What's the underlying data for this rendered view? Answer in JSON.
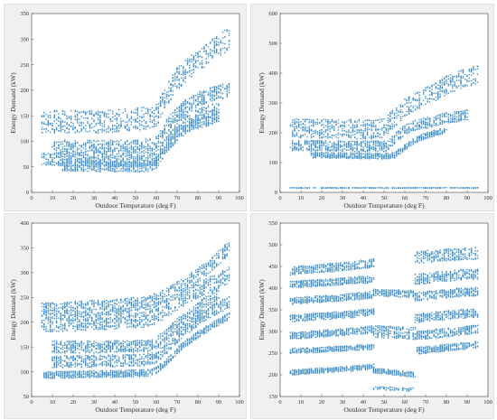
{
  "chart_data": [
    {
      "type": "scatter",
      "xlabel": "Outdoor Temperature (deg F)",
      "ylabel": "Energy Demand (kW)",
      "xlim": [
        0,
        100
      ],
      "ylim": [
        0,
        350
      ],
      "xticks": [
        "0",
        "10",
        "20",
        "30",
        "40",
        "50",
        "60",
        "70",
        "80",
        "90",
        "100"
      ],
      "yticks": [
        "0",
        "50",
        "100",
        "150",
        "200",
        "250",
        "300",
        "350"
      ],
      "grid": false,
      "color": "#3d8fce",
      "series": [
        {
          "bands": [
            {
              "x": [
                5,
                35,
                45,
                55,
                60,
                65,
                70,
                75,
                80,
                85,
                90,
                95
              ],
              "y": [
                138,
                138,
                142,
                145,
                150,
                190,
                222,
                240,
                258,
                272,
                288,
                300
              ],
              "spread": 22
            },
            {
              "x": [
                10,
                40,
                55,
                60,
                65,
                70,
                75,
                80,
                85,
                90,
                95
              ],
              "y": [
                88,
                88,
                90,
                95,
                130,
                155,
                170,
                182,
                190,
                196,
                200
              ],
              "spread": 14
            },
            {
              "x": [
                5,
                40,
                55,
                60,
                65,
                70,
                75,
                80,
                85,
                90
              ],
              "y": [
                65,
                62,
                62,
                68,
                100,
                128,
                145,
                152,
                158,
                165
              ],
              "spread": 12
            },
            {
              "x": [
                15,
                40,
                55,
                60,
                65,
                70,
                75,
                80,
                85,
                90
              ],
              "y": [
                52,
                50,
                50,
                56,
                88,
                110,
                128,
                135,
                140,
                148
              ],
              "spread": 10
            }
          ]
        }
      ]
    },
    {
      "type": "scatter",
      "xlabel": "Outdoor Temperature (deg F)",
      "ylabel": "Energy Demand (kW)",
      "xlim": [
        0,
        100
      ],
      "ylim": [
        0,
        600
      ],
      "xticks": [
        "0",
        "10",
        "20",
        "30",
        "40",
        "50",
        "60",
        "70",
        "80",
        "90",
        "100"
      ],
      "yticks": [
        "0",
        "100",
        "200",
        "300",
        "400",
        "500",
        "600"
      ],
      "grid": false,
      "color": "#3d8fce",
      "series": [
        {
          "bands": [
            {
              "x": [
                5,
                30,
                45,
                50,
                55,
                60,
                65,
                70,
                75,
                80,
                85,
                90,
                95
              ],
              "y": [
                215,
                212,
                212,
                215,
                250,
                285,
                305,
                320,
                340,
                360,
                372,
                385,
                395
              ],
              "spread": 32
            },
            {
              "x": [
                5,
                30,
                45,
                52,
                55,
                60,
                65,
                70,
                75,
                80,
                85,
                90
              ],
              "y": [
                158,
                155,
                155,
                155,
                180,
                210,
                225,
                232,
                240,
                250,
                255,
                258
              ],
              "spread": 18
            },
            {
              "x": [
                15,
                30,
                50,
                55,
                60,
                65,
                70,
                75,
                80
              ],
              "y": [
                125,
                123,
                122,
                125,
                150,
                175,
                190,
                200,
                210
              ],
              "spread": 10
            },
            {
              "x": [
                5,
                95
              ],
              "y": [
                15,
                15
              ],
              "spread": 1
            }
          ]
        }
      ]
    },
    {
      "type": "scatter",
      "xlabel": "Outdoor Temperature (deg F)",
      "ylabel": "Energy Demand (kW)",
      "xlim": [
        0,
        100
      ],
      "ylim": [
        50,
        400
      ],
      "xticks": [
        "0",
        "10",
        "20",
        "30",
        "40",
        "50",
        "60",
        "70",
        "80",
        "90",
        "100"
      ],
      "yticks": [
        "50",
        "100",
        "150",
        "200",
        "250",
        "300",
        "350",
        "400"
      ],
      "grid": false,
      "color": "#3d8fce",
      "series": [
        {
          "bands": [
            {
              "x": [
                5,
                20,
                40,
                55,
                60,
                65,
                70,
                75,
                80,
                85,
                90,
                95
              ],
              "y": [
                225,
                228,
                232,
                238,
                245,
                255,
                268,
                280,
                295,
                310,
                330,
                350
              ],
              "spread": 14
            },
            {
              "x": [
                5,
                30,
                55,
                60,
                65,
                70,
                75,
                80,
                85,
                90,
                95
              ],
              "y": [
                195,
                200,
                205,
                212,
                225,
                240,
                255,
                265,
                275,
                285,
                295
              ],
              "spread": 16
            },
            {
              "x": [
                10,
                30,
                55,
                60,
                65,
                70,
                75,
                80,
                85,
                90
              ],
              "y": [
                150,
                150,
                152,
                158,
                175,
                195,
                210,
                228,
                245,
                258
              ],
              "spread": 12
            },
            {
              "x": [
                10,
                30,
                55,
                60,
                65,
                70,
                75,
                80,
                85,
                90,
                95
              ],
              "y": [
                120,
                121,
                124,
                130,
                148,
                170,
                188,
                205,
                218,
                230,
                240
              ],
              "spread": 12
            },
            {
              "x": [
                5,
                30,
                55,
                60,
                65,
                70,
                75,
                80,
                85,
                90,
                95
              ],
              "y": [
                93,
                95,
                97,
                103,
                120,
                142,
                160,
                175,
                188,
                200,
                212
              ],
              "spread": 7
            }
          ]
        }
      ]
    },
    {
      "type": "scatter",
      "xlabel": "Outdoor Temperature (deg F)",
      "ylabel": "Energy Demand (kW)",
      "xlim": [
        0,
        100
      ],
      "ylim": [
        150,
        550
      ],
      "xticks": [
        "0",
        "10",
        "20",
        "30",
        "40",
        "50",
        "60",
        "70",
        "80",
        "90",
        "100"
      ],
      "yticks": [
        "150",
        "200",
        "250",
        "300",
        "350",
        "400",
        "450",
        "500",
        "550"
      ],
      "grid": false,
      "color": "#3d8fce",
      "series": [
        {
          "bands": [
            {
              "x": [
                5,
                20,
                35,
                45
              ],
              "y": [
                440,
                445,
                452,
                458
              ],
              "spread": 10
            },
            {
              "x": [
                5,
                20,
                35,
                45
              ],
              "y": [
                408,
                412,
                418,
                420
              ],
              "spread": 8
            },
            {
              "x": [
                5,
                20,
                35,
                45
              ],
              "y": [
                370,
                375,
                380,
                385
              ],
              "spread": 8
            },
            {
              "x": [
                5,
                20,
                35,
                45
              ],
              "y": [
                330,
                335,
                340,
                345
              ],
              "spread": 8
            },
            {
              "x": [
                5,
                20,
                35,
                45
              ],
              "y": [
                290,
                295,
                300,
                305
              ],
              "spread": 8
            },
            {
              "x": [
                5,
                20,
                35,
                45
              ],
              "y": [
                255,
                258,
                262,
                265
              ],
              "spread": 6
            },
            {
              "x": [
                5,
                20,
                35,
                45
              ],
              "y": [
                205,
                210,
                215,
                220
              ],
              "spread": 6
            },
            {
              "x": [
                45,
                55,
                65
              ],
              "y": [
                390,
                388,
                386
              ],
              "spread": 8
            },
            {
              "x": [
                45,
                55,
                65
              ],
              "y": [
                300,
                298,
                296
              ],
              "spread": 14
            },
            {
              "x": [
                45,
                55,
                65
              ],
              "y": [
                210,
                205,
                200
              ],
              "spread": 6
            },
            {
              "x": [
                45,
                55,
                65
              ],
              "y": [
                170,
                168,
                166
              ],
              "spread": 4
            },
            {
              "x": [
                65,
                75,
                85,
                95
              ],
              "y": [
                470,
                475,
                478,
                480
              ],
              "spread": 14
            },
            {
              "x": [
                65,
                75,
                85,
                95
              ],
              "y": [
                420,
                425,
                430,
                432
              ],
              "spread": 12
            },
            {
              "x": [
                65,
                75,
                85,
                95
              ],
              "y": [
                380,
                385,
                390,
                392
              ],
              "spread": 10
            },
            {
              "x": [
                65,
                75,
                85,
                95
              ],
              "y": [
                330,
                335,
                340,
                342
              ],
              "spread": 10
            },
            {
              "x": [
                65,
                75,
                85,
                95
              ],
              "y": [
                290,
                295,
                300,
                305
              ],
              "spread": 10
            },
            {
              "x": [
                65,
                75,
                85,
                95
              ],
              "y": [
                255,
                260,
                265,
                270
              ],
              "spread": 8
            }
          ]
        }
      ]
    }
  ]
}
